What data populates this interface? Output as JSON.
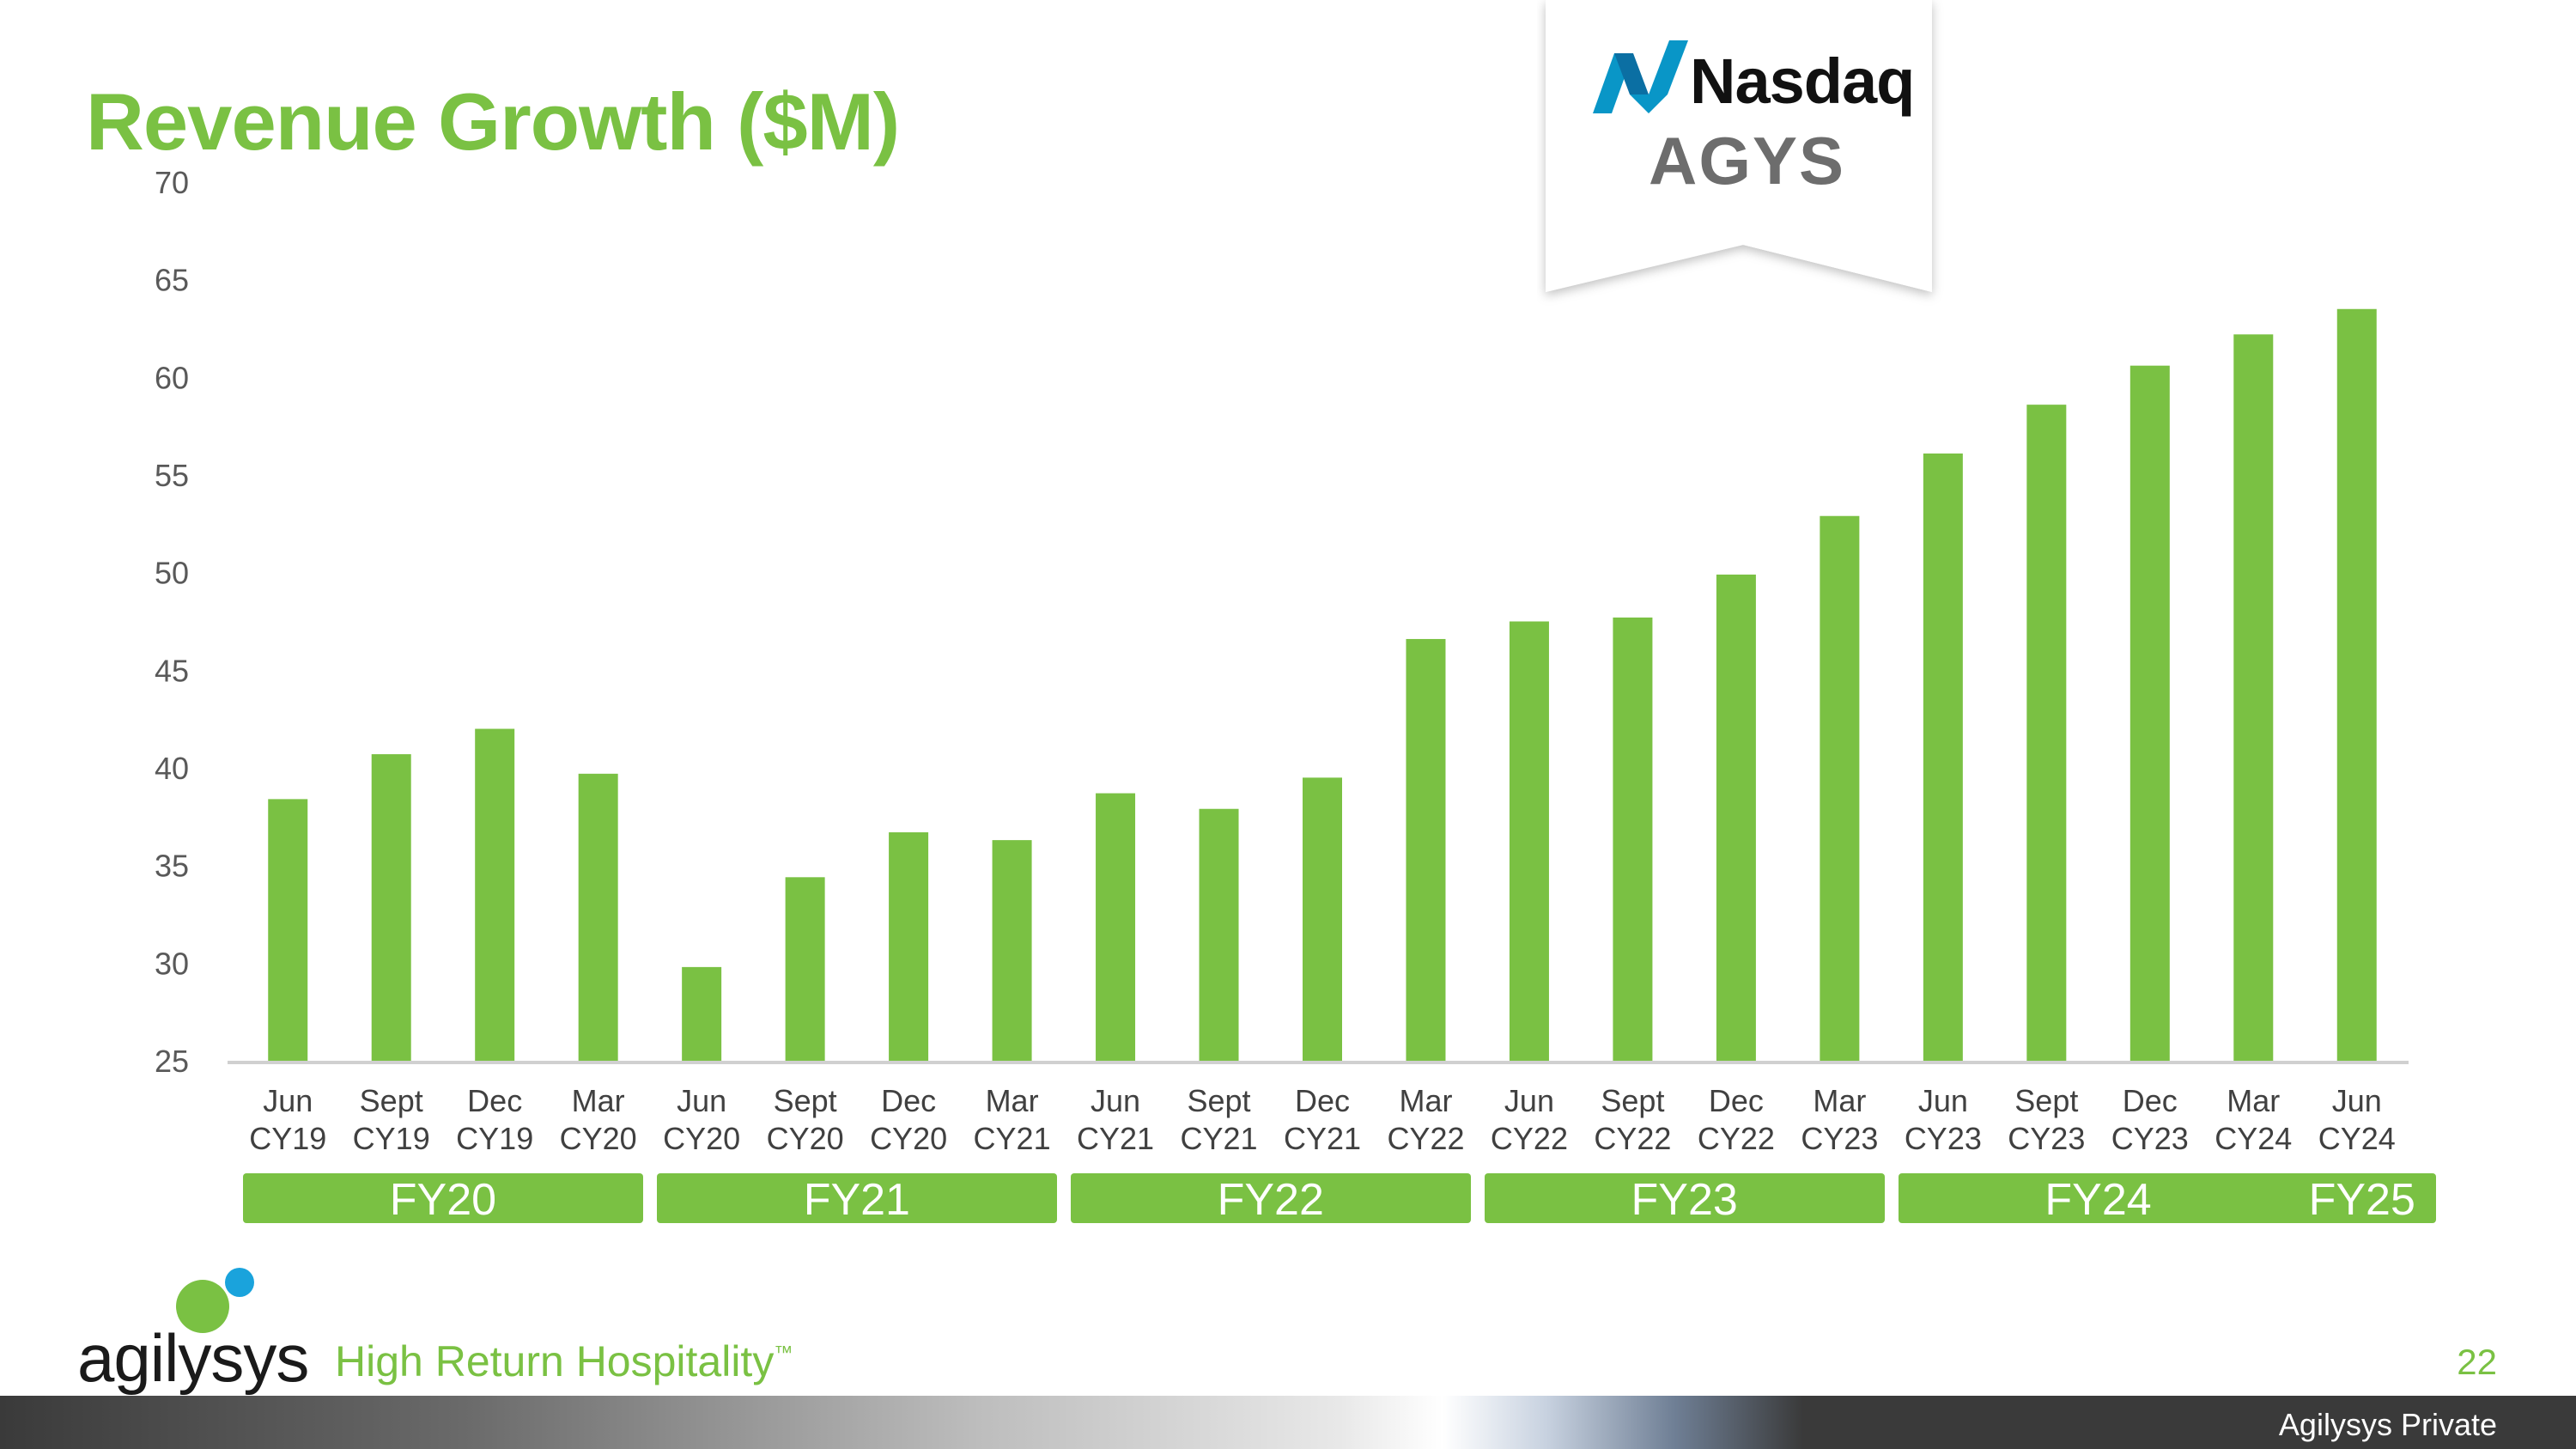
{
  "title": "Revenue Growth ($M)",
  "brand": {
    "exchange": "Nasdaq",
    "ticker": "AGYS",
    "accent_color": "#7ac143",
    "logo_text": "agilysys",
    "tagline": "High Return Hospitality",
    "trademark": "™",
    "page_number": "22",
    "footer_label": "Agilysys Private"
  },
  "fiscal_years": [
    "FY20",
    "FY21",
    "FY22",
    "FY23",
    "FY24",
    "FY25"
  ],
  "chart_data": {
    "type": "bar",
    "title": "Revenue Growth ($M)",
    "xlabel": "",
    "ylabel": "",
    "ylim": [
      25,
      70
    ],
    "yticks": [
      25,
      30,
      35,
      40,
      45,
      50,
      55,
      60,
      65,
      70
    ],
    "grid": false,
    "bar_color": "#7ac143",
    "categories": [
      [
        "Jun",
        "CY19"
      ],
      [
        "Sept",
        "CY19"
      ],
      [
        "Dec",
        "CY19"
      ],
      [
        "Mar",
        "CY20"
      ],
      [
        "Jun",
        "CY20"
      ],
      [
        "Sept",
        "CY20"
      ],
      [
        "Dec",
        "CY20"
      ],
      [
        "Mar",
        "CY21"
      ],
      [
        "Jun",
        "CY21"
      ],
      [
        "Sept",
        "CY21"
      ],
      [
        "Dec",
        "CY21"
      ],
      [
        "Mar",
        "CY22"
      ],
      [
        "Jun",
        "CY22"
      ],
      [
        "Sept",
        "CY22"
      ],
      [
        "Dec",
        "CY22"
      ],
      [
        "Mar",
        "CY23"
      ],
      [
        "Jun",
        "CY23"
      ],
      [
        "Sept",
        "CY23"
      ],
      [
        "Dec",
        "CY23"
      ],
      [
        "Mar",
        "CY24"
      ],
      [
        "Jun",
        "CY24"
      ]
    ],
    "values": [
      38.4,
      40.7,
      42.0,
      39.7,
      29.8,
      34.4,
      36.7,
      36.3,
      38.7,
      37.9,
      39.5,
      46.6,
      47.5,
      47.7,
      49.9,
      52.9,
      56.1,
      58.6,
      60.6,
      62.2,
      63.5
    ]
  }
}
